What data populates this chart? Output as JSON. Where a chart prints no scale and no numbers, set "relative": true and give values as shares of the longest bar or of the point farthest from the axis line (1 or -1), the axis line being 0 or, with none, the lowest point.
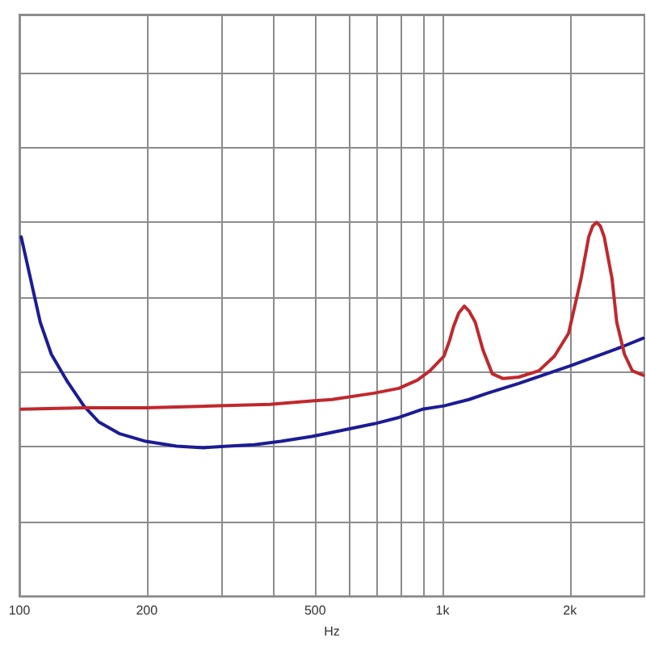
{
  "chart_data": {
    "type": "line",
    "xlabel": "Hz",
    "log": "x",
    "xlim": [
      100,
      3000
    ],
    "xticks": [
      {
        "value": 100,
        "label": "100"
      },
      {
        "value": 200,
        "label": "200"
      },
      {
        "value": 300,
        "label": null
      },
      {
        "value": 400,
        "label": null
      },
      {
        "value": 500,
        "label": "500"
      },
      {
        "value": 600,
        "label": null
      },
      {
        "value": 700,
        "label": null
      },
      {
        "value": 800,
        "label": null
      },
      {
        "value": 900,
        "label": null
      },
      {
        "value": 1000,
        "label": "1k"
      },
      {
        "value": 2000,
        "label": "2k"
      }
    ],
    "relative": true,
    "grid": true,
    "marker": "none",
    "line_style": "solid",
    "series": [
      {
        "color": "#1c1c96",
        "x": [
          101,
          112,
          119,
          130,
          142,
          154,
          172,
          199,
          235,
          272,
          311,
          359,
          415,
          491,
          548,
          689,
          789,
          896,
          1008,
          1155,
          1278,
          1514,
          2002,
          2670,
          2979
        ],
        "values": [
          0.961,
          0.733,
          0.647,
          0.573,
          0.509,
          0.466,
          0.435,
          0.414,
          0.401,
          0.397,
          0.401,
          0.405,
          0.414,
          0.427,
          0.438,
          0.461,
          0.478,
          0.5,
          0.509,
          0.526,
          0.543,
          0.569,
          0.616,
          0.668,
          0.69
        ]
      },
      {
        "color": "#c0282d",
        "x": [
          101,
          142,
          199,
          296,
          391,
          491,
          548,
          689,
          789,
          873,
          934,
          1008,
          1040,
          1061,
          1092,
          1126,
          1155,
          1195,
          1246,
          1311,
          1391,
          1514,
          1690,
          1839,
          1986,
          2125,
          2216,
          2264,
          2312,
          2361,
          2411,
          2516,
          2581,
          2692,
          2809,
          2979
        ],
        "values": [
          0.5,
          0.504,
          0.504,
          0.509,
          0.513,
          0.522,
          0.526,
          0.543,
          0.556,
          0.578,
          0.603,
          0.642,
          0.685,
          0.72,
          0.757,
          0.776,
          0.763,
          0.733,
          0.659,
          0.595,
          0.582,
          0.586,
          0.603,
          0.642,
          0.703,
          0.849,
          0.961,
          0.99,
          1.0,
          0.99,
          0.961,
          0.849,
          0.733,
          0.647,
          0.603,
          0.591
        ]
      }
    ]
  }
}
